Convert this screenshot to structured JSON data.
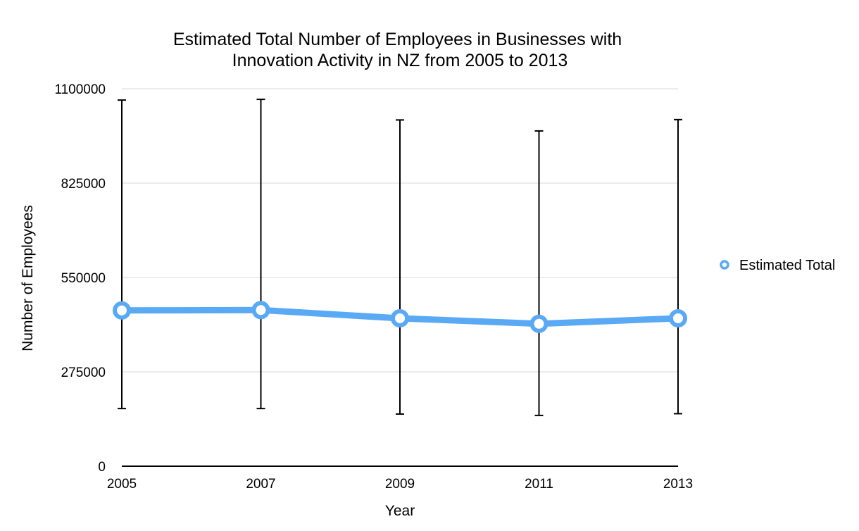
{
  "chart_data": {
    "type": "line",
    "title_lines": [
      "Estimated Total Number of Employees in Businesses with",
      "Innovation Activity in NZ from 2005 to 2013"
    ],
    "xlabel": "Year",
    "ylabel": "Number of Employees",
    "categories": [
      "2005",
      "2007",
      "2009",
      "2011",
      "2013"
    ],
    "y_ticks": [
      0,
      275000,
      550000,
      825000,
      1100000
    ],
    "y_tick_labels": [
      "0",
      "275000",
      "550000",
      "825000",
      "1100000"
    ],
    "ylim": [
      0,
      1100000
    ],
    "grid": true,
    "legend_position": "right",
    "series": [
      {
        "name": "Estimated Total",
        "color": "#5aa9f5",
        "values": [
          454000,
          455000,
          431000,
          415000,
          431000
        ],
        "error_low": [
          168000,
          168000,
          152000,
          148000,
          153000
        ],
        "error_high": [
          1067000,
          1069000,
          1009000,
          977000,
          1010000
        ]
      }
    ]
  }
}
